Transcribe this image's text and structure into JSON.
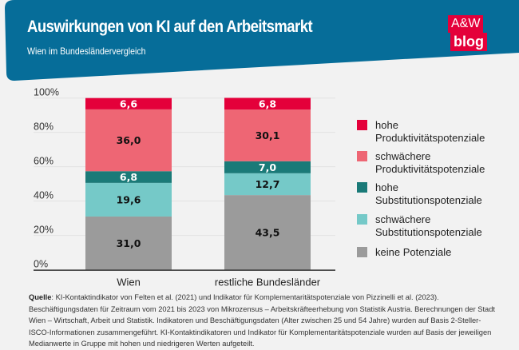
{
  "header": {
    "title": "Auswirkungen von KI auf den Arbeitsmarkt",
    "subtitle": "Wien im Bundesländervergleich",
    "brand_color": "#066d99"
  },
  "logo": {
    "line1": "A&W",
    "line2": "blog"
  },
  "chart_data": {
    "type": "bar",
    "stacked": true,
    "categories": [
      "Wien",
      "restliche Bundesländer"
    ],
    "ylim": [
      0,
      100
    ],
    "yticks": [
      "0%",
      "20%",
      "40%",
      "60%",
      "80%",
      "100%"
    ],
    "grid": true,
    "legend_position": "right",
    "series": [
      {
        "name": "keine Potenziale",
        "color": "#9b9b9b",
        "label_color": "#111",
        "values": [
          31.0,
          43.5
        ],
        "labels": [
          "31,0",
          "43,5"
        ]
      },
      {
        "name": "schwächere Substitutionspotenziale",
        "color": "#75c9c8",
        "label_color": "#111",
        "values": [
          19.6,
          12.7
        ],
        "labels": [
          "19,6",
          "12,7"
        ]
      },
      {
        "name": "hohe Substitutionspotenziale",
        "color": "#1a7a78",
        "label_color": "#fff",
        "values": [
          6.8,
          7.0
        ],
        "labels": [
          "6,8",
          "7,0"
        ]
      },
      {
        "name": "schwächere Produktivitätspotenziale",
        "color": "#ee6674",
        "label_color": "#111",
        "values": [
          36.0,
          30.1
        ],
        "labels": [
          "36,0",
          "30,1"
        ]
      },
      {
        "name": "hohe Produktivitätspotenziale",
        "color": "#e4003a",
        "label_color": "#fff",
        "values": [
          6.6,
          6.8
        ],
        "labels": [
          "6,6",
          "6,8"
        ]
      }
    ]
  },
  "legend": [
    {
      "line1": "hohe",
      "line2": "Produktivitätspotenziale",
      "color": "#e4003a"
    },
    {
      "line1": "schwächere",
      "line2": "Produktivitätspotenziale",
      "color": "#ee6674"
    },
    {
      "line1": "hohe",
      "line2": "Substitutionspotenziale",
      "color": "#1a7a78"
    },
    {
      "line1": "schwächere",
      "line2": "Substitutionspotenziale",
      "color": "#75c9c8"
    },
    {
      "line1": "keine Potenziale",
      "line2": "",
      "color": "#9b9b9b"
    }
  ],
  "source": {
    "label": "Quelle",
    "text": ": KI-Kontaktindikator von Felten et al. (2021) und Indikator für Komplementaritätspotenziale von Pizzinelli et al. (2023). Beschäftigungsdaten für Zeitraum vom 2021 bis 2023 von Mikrozensus – Arbeitskräfteerhebung von Statistik Austria. Berechnungen der Stadt Wien – Wirtschaft, Arbeit und Statistik. Indikatoren und Beschäftigungsdaten (Alter zwischen 25 und 54 Jahre) wurden auf Basis 2-Steller-ISCO-Informationen zusammengeführt. KI-Kontaktindikatoren und Indikator für Komplementaritätspotenziale wurden auf Basis der jeweiligen Medianwerte in Gruppe mit hohen und niedrigeren Werten aufgeteilt."
  }
}
